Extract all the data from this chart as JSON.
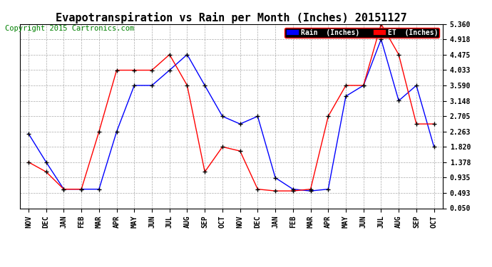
{
  "title": "Evapotranspiration vs Rain per Month (Inches) 20151127",
  "copyright": "Copyright 2015 Cartronics.com",
  "labels": [
    "NOV",
    "DEC",
    "JAN",
    "FEB",
    "MAR",
    "APR",
    "MAY",
    "JUN",
    "JUL",
    "AUG",
    "SEP",
    "OCT",
    "NOV",
    "DEC",
    "JAN",
    "FEB",
    "MAR",
    "APR",
    "MAY",
    "JUN",
    "JUL",
    "AUG",
    "SEP",
    "OCT"
  ],
  "rain": [
    2.2,
    1.38,
    0.6,
    0.6,
    0.6,
    2.26,
    3.59,
    3.59,
    4.03,
    4.48,
    3.59,
    2.7,
    2.48,
    2.7,
    0.93,
    0.6,
    0.55,
    0.6,
    3.28,
    3.59,
    4.92,
    3.15,
    3.59,
    1.82
  ],
  "et": [
    1.38,
    1.1,
    0.6,
    0.6,
    2.26,
    4.03,
    4.03,
    4.03,
    4.48,
    3.59,
    1.1,
    1.82,
    1.7,
    0.6,
    0.55,
    0.55,
    0.6,
    2.7,
    3.59,
    3.59,
    5.36,
    4.48,
    2.48,
    2.48
  ],
  "rain_color": "#0000FF",
  "et_color": "#FF0000",
  "background": "#FFFFFF",
  "grid_color": "#AAAAAA",
  "yticks": [
    0.05,
    0.493,
    0.935,
    1.378,
    1.82,
    2.263,
    2.705,
    3.148,
    3.59,
    4.033,
    4.475,
    4.918,
    5.36
  ],
  "ylim_min": 0.05,
  "ylim_max": 5.36,
  "legend_rain": "Rain  (Inches)",
  "legend_et": "ET  (Inches)",
  "title_fontsize": 11,
  "copyright_fontsize": 7.5,
  "tick_fontsize": 7,
  "figwidth": 6.9,
  "figheight": 3.75,
  "dpi": 100
}
